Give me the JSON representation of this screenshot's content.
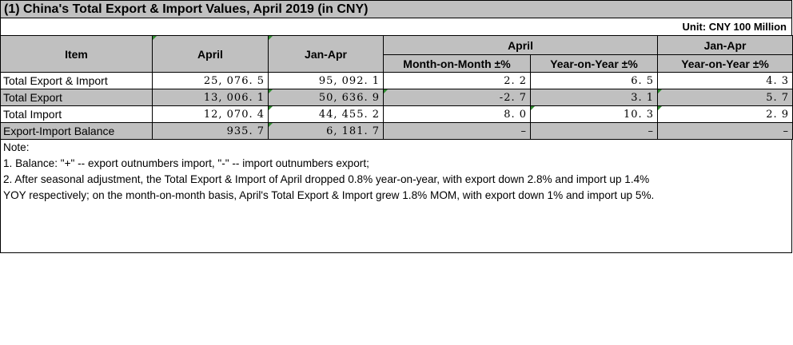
{
  "title": "(1) China's Total Export & Import Values, April 2019 (in CNY)",
  "unit": "Unit: CNY 100 Million",
  "headers": {
    "item": "Item",
    "april": "April",
    "jan_apr": "Jan-Apr",
    "group_april": "April",
    "group_jan_apr": "Jan-Apr",
    "mom": "Month-on-Month ±%",
    "yoy_april": "Year-on-Year ±%",
    "yoy_jan_apr": "Year-on-Year ±%"
  },
  "rows": [
    {
      "item": "Total Export & Import",
      "april": "25, 076. 5",
      "jan_apr": "95, 092. 1",
      "mom": "2. 2",
      "yoy_april": "6. 5",
      "yoy_jan_apr": "4. 3"
    },
    {
      "item": "Total Export",
      "april": "13, 006. 1",
      "jan_apr": "50, 636. 9",
      "mom": "-2. 7",
      "yoy_april": "3. 1",
      "yoy_jan_apr": "5. 7"
    },
    {
      "item": "Total Import",
      "april": "12, 070. 4",
      "jan_apr": "44, 455. 2",
      "mom": "8. 0",
      "yoy_april": "10. 3",
      "yoy_jan_apr": "2. 9"
    },
    {
      "item": "Export-Import Balance",
      "april": "935. 7",
      "jan_apr": "6, 181. 7",
      "mom": "–",
      "yoy_april": "–",
      "yoy_jan_apr": "–"
    }
  ],
  "notes": {
    "heading": "Note:",
    "line1": "1. Balance: \"+\" -- export outnumbers import, \"-\" -- import outnumbers export;",
    "line2": "2. After seasonal adjustment, the Total Export & Import of April dropped 0.8% year-on-year, with export down 2.8% and import up 1.4%",
    "line3": "YOY respectively; on the month-on-month basis, April's Total Export & Import grew 1.8% MOM, with export down 1% and import up 5%."
  },
  "colors": {
    "header_fill": "#c0c0c0",
    "shaded_row_fill": "#c0c0c0",
    "cell_marker": "#2e8b2e"
  }
}
